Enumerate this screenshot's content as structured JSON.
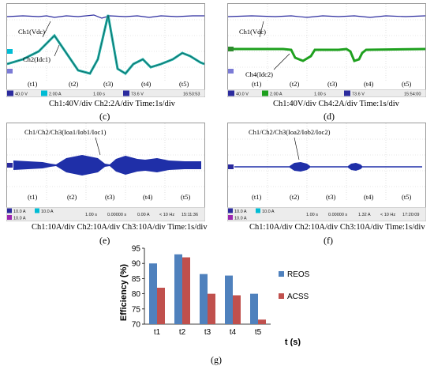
{
  "panels": {
    "c": {
      "letter": "(c)",
      "caption": "Ch1:40V/div   Ch2:2A/div   Time:1s/div",
      "ch1_label": "Ch1(Vdc)",
      "ch2_label": "Ch2(Idc1)",
      "periods": [
        "(t1)",
        "(t2)",
        "(t3)",
        "(t4)",
        "(t5)"
      ],
      "status": [
        "40.0 V",
        "2.00 A",
        "1.00 s",
        "73.6 V",
        "16:53:53"
      ]
    },
    "d": {
      "letter": "(d)",
      "caption": "Ch1:40V/div   Ch4:2A/div   Time:1s/div",
      "ch1_label": "Ch1(Vdc)",
      "ch2_label": "Ch4(Idc2)",
      "periods": [
        "(t1)",
        "(t2)",
        "(t3)",
        "(t4)",
        "(t5)"
      ],
      "status": [
        "40.0 V",
        "2.00 A",
        "1.00 s",
        "73.6 V",
        "15:54:00"
      ]
    },
    "e": {
      "letter": "(e)",
      "caption": "Ch1:10A/div   Ch2:10A/div   Ch3:10A/div   Time:1s/div",
      "trace_label": "Ch1/Ch2/Ch3(Ioa1/Iob1/Ioc1)",
      "periods": [
        "(t1)",
        "(t2)",
        "(t3)",
        "(t4)",
        "(t5)"
      ],
      "status": [
        "10.0 A",
        "10.0 A",
        "10.0 A",
        "1.00 s",
        "0.00000 s",
        "0.00 A",
        "< 10 Hz",
        "15:11:36"
      ]
    },
    "f": {
      "letter": "(f)",
      "caption": "Ch1:10A/div   Ch2:10A/div   Ch3:10A/div   Time:1s/div",
      "trace_label": "Ch1/Ch2/Ch3(Ioa2/Iob2/Ioc2)",
      "periods": [
        "(t1)",
        "(t2)",
        "(t3)",
        "(t4)",
        "(t5)"
      ],
      "status": [
        "10.0 A",
        "10.0 A",
        "10.0 A",
        "1.00 s",
        "0.00000 s",
        "1.32 A",
        "< 10 Hz",
        "17:20:09"
      ]
    },
    "g": {
      "letter": "(g)"
    }
  },
  "chart_data": {
    "type": "bar",
    "categories": [
      "t1",
      "t2",
      "t3",
      "t4",
      "t5"
    ],
    "series": [
      {
        "name": "REOS",
        "values": [
          90,
          93,
          86.5,
          86,
          80
        ],
        "color": "#4f81bd"
      },
      {
        "name": "ACSS",
        "values": [
          82,
          92,
          80,
          79.5,
          71.5
        ],
        "color": "#c0504d"
      }
    ],
    "xlabel": "t (s)",
    "ylabel": "Efficiency (%)",
    "ylim": [
      70,
      95
    ],
    "yticks": [
      70,
      75,
      80,
      85,
      90,
      95
    ],
    "legend_position": "right",
    "grid": false
  }
}
